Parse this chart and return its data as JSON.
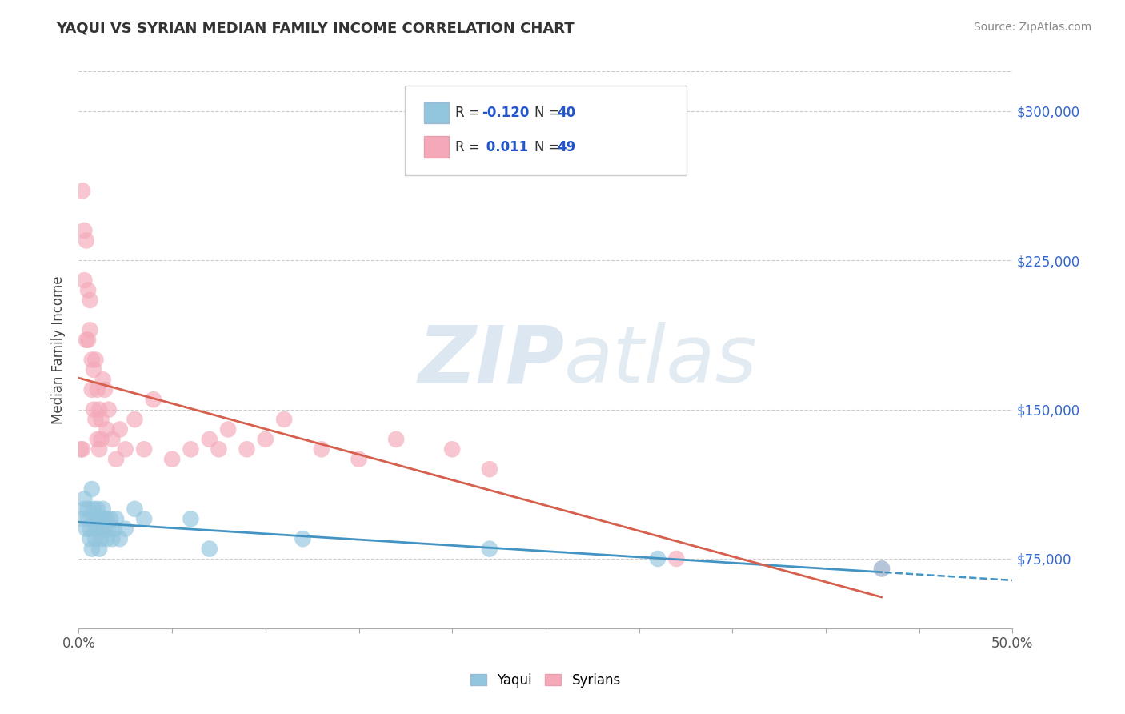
{
  "title": "YAQUI VS SYRIAN MEDIAN FAMILY INCOME CORRELATION CHART",
  "source": "Source: ZipAtlas.com",
  "ylabel": "Median Family Income",
  "xlim": [
    0.0,
    0.5
  ],
  "ylim": [
    40000,
    320000
  ],
  "yticks": [
    75000,
    150000,
    225000,
    300000
  ],
  "ytick_labels": [
    "$75,000",
    "$150,000",
    "$225,000",
    "$300,000"
  ],
  "R_yaqui": -0.12,
  "N_yaqui": 40,
  "R_syrians": 0.011,
  "N_syrians": 49,
  "color_yaqui": "#92c5de",
  "color_syrians": "#f4a8b8",
  "line_color_yaqui": "#4393c3",
  "line_color_syrians": "#d6604d",
  "background_color": "#ffffff",
  "grid_color": "#cccccc",
  "title_color": "#333333",
  "yaqui_x": [
    0.002,
    0.003,
    0.003,
    0.004,
    0.005,
    0.005,
    0.006,
    0.006,
    0.007,
    0.007,
    0.008,
    0.008,
    0.009,
    0.009,
    0.01,
    0.01,
    0.011,
    0.011,
    0.012,
    0.012,
    0.013,
    0.013,
    0.014,
    0.015,
    0.015,
    0.016,
    0.017,
    0.018,
    0.019,
    0.02,
    0.022,
    0.025,
    0.03,
    0.035,
    0.06,
    0.07,
    0.12,
    0.22,
    0.31,
    0.43
  ],
  "yaqui_y": [
    95000,
    100000,
    105000,
    90000,
    100000,
    95000,
    90000,
    85000,
    110000,
    80000,
    95000,
    100000,
    90000,
    85000,
    95000,
    100000,
    80000,
    95000,
    90000,
    85000,
    95000,
    100000,
    90000,
    85000,
    95000,
    90000,
    95000,
    85000,
    90000,
    95000,
    85000,
    90000,
    100000,
    95000,
    95000,
    80000,
    85000,
    80000,
    75000,
    70000
  ],
  "syrians_x": [
    0.001,
    0.002,
    0.002,
    0.003,
    0.003,
    0.004,
    0.004,
    0.005,
    0.005,
    0.006,
    0.006,
    0.007,
    0.007,
    0.008,
    0.008,
    0.009,
    0.009,
    0.01,
    0.01,
    0.011,
    0.011,
    0.012,
    0.012,
    0.013,
    0.014,
    0.015,
    0.016,
    0.018,
    0.02,
    0.022,
    0.025,
    0.03,
    0.035,
    0.04,
    0.05,
    0.06,
    0.07,
    0.075,
    0.08,
    0.09,
    0.1,
    0.11,
    0.13,
    0.15,
    0.17,
    0.2,
    0.22,
    0.32,
    0.43
  ],
  "syrians_y": [
    130000,
    260000,
    130000,
    240000,
    215000,
    235000,
    185000,
    210000,
    185000,
    205000,
    190000,
    175000,
    160000,
    170000,
    150000,
    175000,
    145000,
    160000,
    135000,
    150000,
    130000,
    145000,
    135000,
    165000,
    160000,
    140000,
    150000,
    135000,
    125000,
    140000,
    130000,
    145000,
    130000,
    155000,
    125000,
    130000,
    135000,
    130000,
    140000,
    130000,
    135000,
    145000,
    130000,
    125000,
    135000,
    130000,
    120000,
    75000,
    70000
  ]
}
